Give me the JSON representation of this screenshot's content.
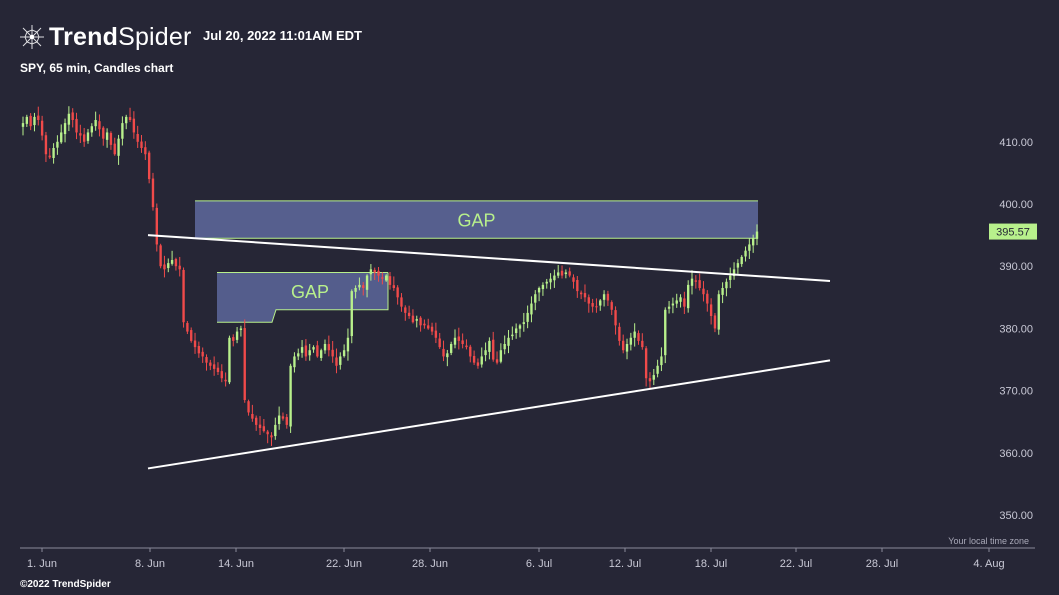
{
  "header": {
    "brand_bold": "Trend",
    "brand_light": "Spider",
    "logo_icon": "spider-web-icon",
    "timestamp": "Jul 20, 2022 11:01AM EDT"
  },
  "subtitle": "SPY, 65 min, Candles chart",
  "copyright": "©2022 TrendSpider",
  "chart_data": {
    "type": "candlestick",
    "symbol": "SPY",
    "interval": "65 min",
    "ylim": [
      346,
      418
    ],
    "y_ticks": [
      350,
      360,
      370,
      380,
      390,
      400,
      410
    ],
    "y_tick_labels": [
      "350.00",
      "360.00",
      "370.00",
      "380.00",
      "390.00",
      "400.00",
      "410.00"
    ],
    "x_ticks": [
      "1. Jun",
      "8. Jun",
      "14. Jun",
      "22. Jun",
      "28. Jun",
      "6. Jul",
      "12. Jul",
      "18. Jul",
      "22. Jul",
      "28. Jul",
      "4. Aug"
    ],
    "timezone_note": "Your local time zone",
    "last_price": "395.57",
    "colors": {
      "up": "#b8f08c",
      "down": "#f04a4a",
      "background": "#262636",
      "gap_fill": "#5a6496",
      "trendline": "#ffffff"
    },
    "closes": [
      413,
      414,
      412.5,
      414,
      413.5,
      411,
      408,
      407.5,
      409,
      410,
      411.5,
      413,
      414.5,
      413.5,
      411.5,
      411,
      410,
      411.5,
      412.5,
      413.5,
      412,
      410.5,
      411.5,
      409.5,
      408,
      410.5,
      413,
      414,
      413.5,
      411.5,
      410,
      409,
      408,
      404,
      399.5,
      393.5,
      390,
      389.5,
      390.5,
      391,
      390,
      389.5,
      381,
      379.5,
      378,
      377,
      376,
      375.5,
      374.5,
      374,
      373.5,
      373,
      372,
      371.5,
      378.5,
      378,
      379.5,
      380,
      368.5,
      366.5,
      365.5,
      364.5,
      364,
      363.5,
      363,
      362.5,
      364.5,
      366,
      365.5,
      364.5,
      374,
      375.5,
      376,
      377,
      375.5,
      376.5,
      377,
      375.5,
      376.5,
      377.5,
      376.5,
      375.5,
      374,
      375.5,
      376.5,
      378.5,
      386,
      386.5,
      387,
      386.5,
      388.5,
      389.5,
      389,
      388.5,
      388,
      388.5,
      387,
      386.5,
      385,
      383.5,
      382.5,
      382,
      381,
      381.5,
      380.5,
      380.5,
      380,
      379.5,
      378.5,
      377,
      375.5,
      376,
      377.5,
      378.5,
      378,
      377.5,
      377,
      375.5,
      374.5,
      374,
      375.5,
      376.5,
      378,
      375,
      374.5,
      376.5,
      377.5,
      378.5,
      379,
      380,
      380.5,
      381,
      382.5,
      384,
      385.5,
      386.5,
      387,
      387.5,
      388,
      388.5,
      389,
      388.5,
      389,
      388.5,
      387.5,
      386,
      385.5,
      385,
      384,
      383.5,
      383.5,
      384.5,
      385.5,
      384.5,
      383,
      380.5,
      378,
      376.5,
      377.5,
      378.5,
      379.5,
      378,
      377,
      372,
      371.5,
      372.5,
      374,
      375.5,
      383,
      383.5,
      384,
      384.5,
      385,
      383.5,
      387,
      388,
      387.5,
      386.5,
      385.5,
      384,
      382,
      380,
      385.5,
      386.5,
      387.5,
      388.5,
      389.5,
      390.5,
      391.5,
      392.5,
      393.5,
      394.5,
      395.57
    ],
    "annotations": [
      {
        "type": "gap",
        "label": "GAP",
        "range": [
          394.5,
          400.5
        ]
      },
      {
        "type": "gap",
        "label": "GAP",
        "range": [
          381,
          389
        ]
      },
      {
        "type": "trendline",
        "label": "",
        "from": [
          "8. Jun",
          395
        ],
        "to": [
          "22. Jul",
          388
        ]
      },
      {
        "type": "trendline",
        "label": "",
        "from": [
          "8. Jun",
          357.5
        ],
        "to": [
          "22. Jul",
          374
        ]
      }
    ]
  }
}
